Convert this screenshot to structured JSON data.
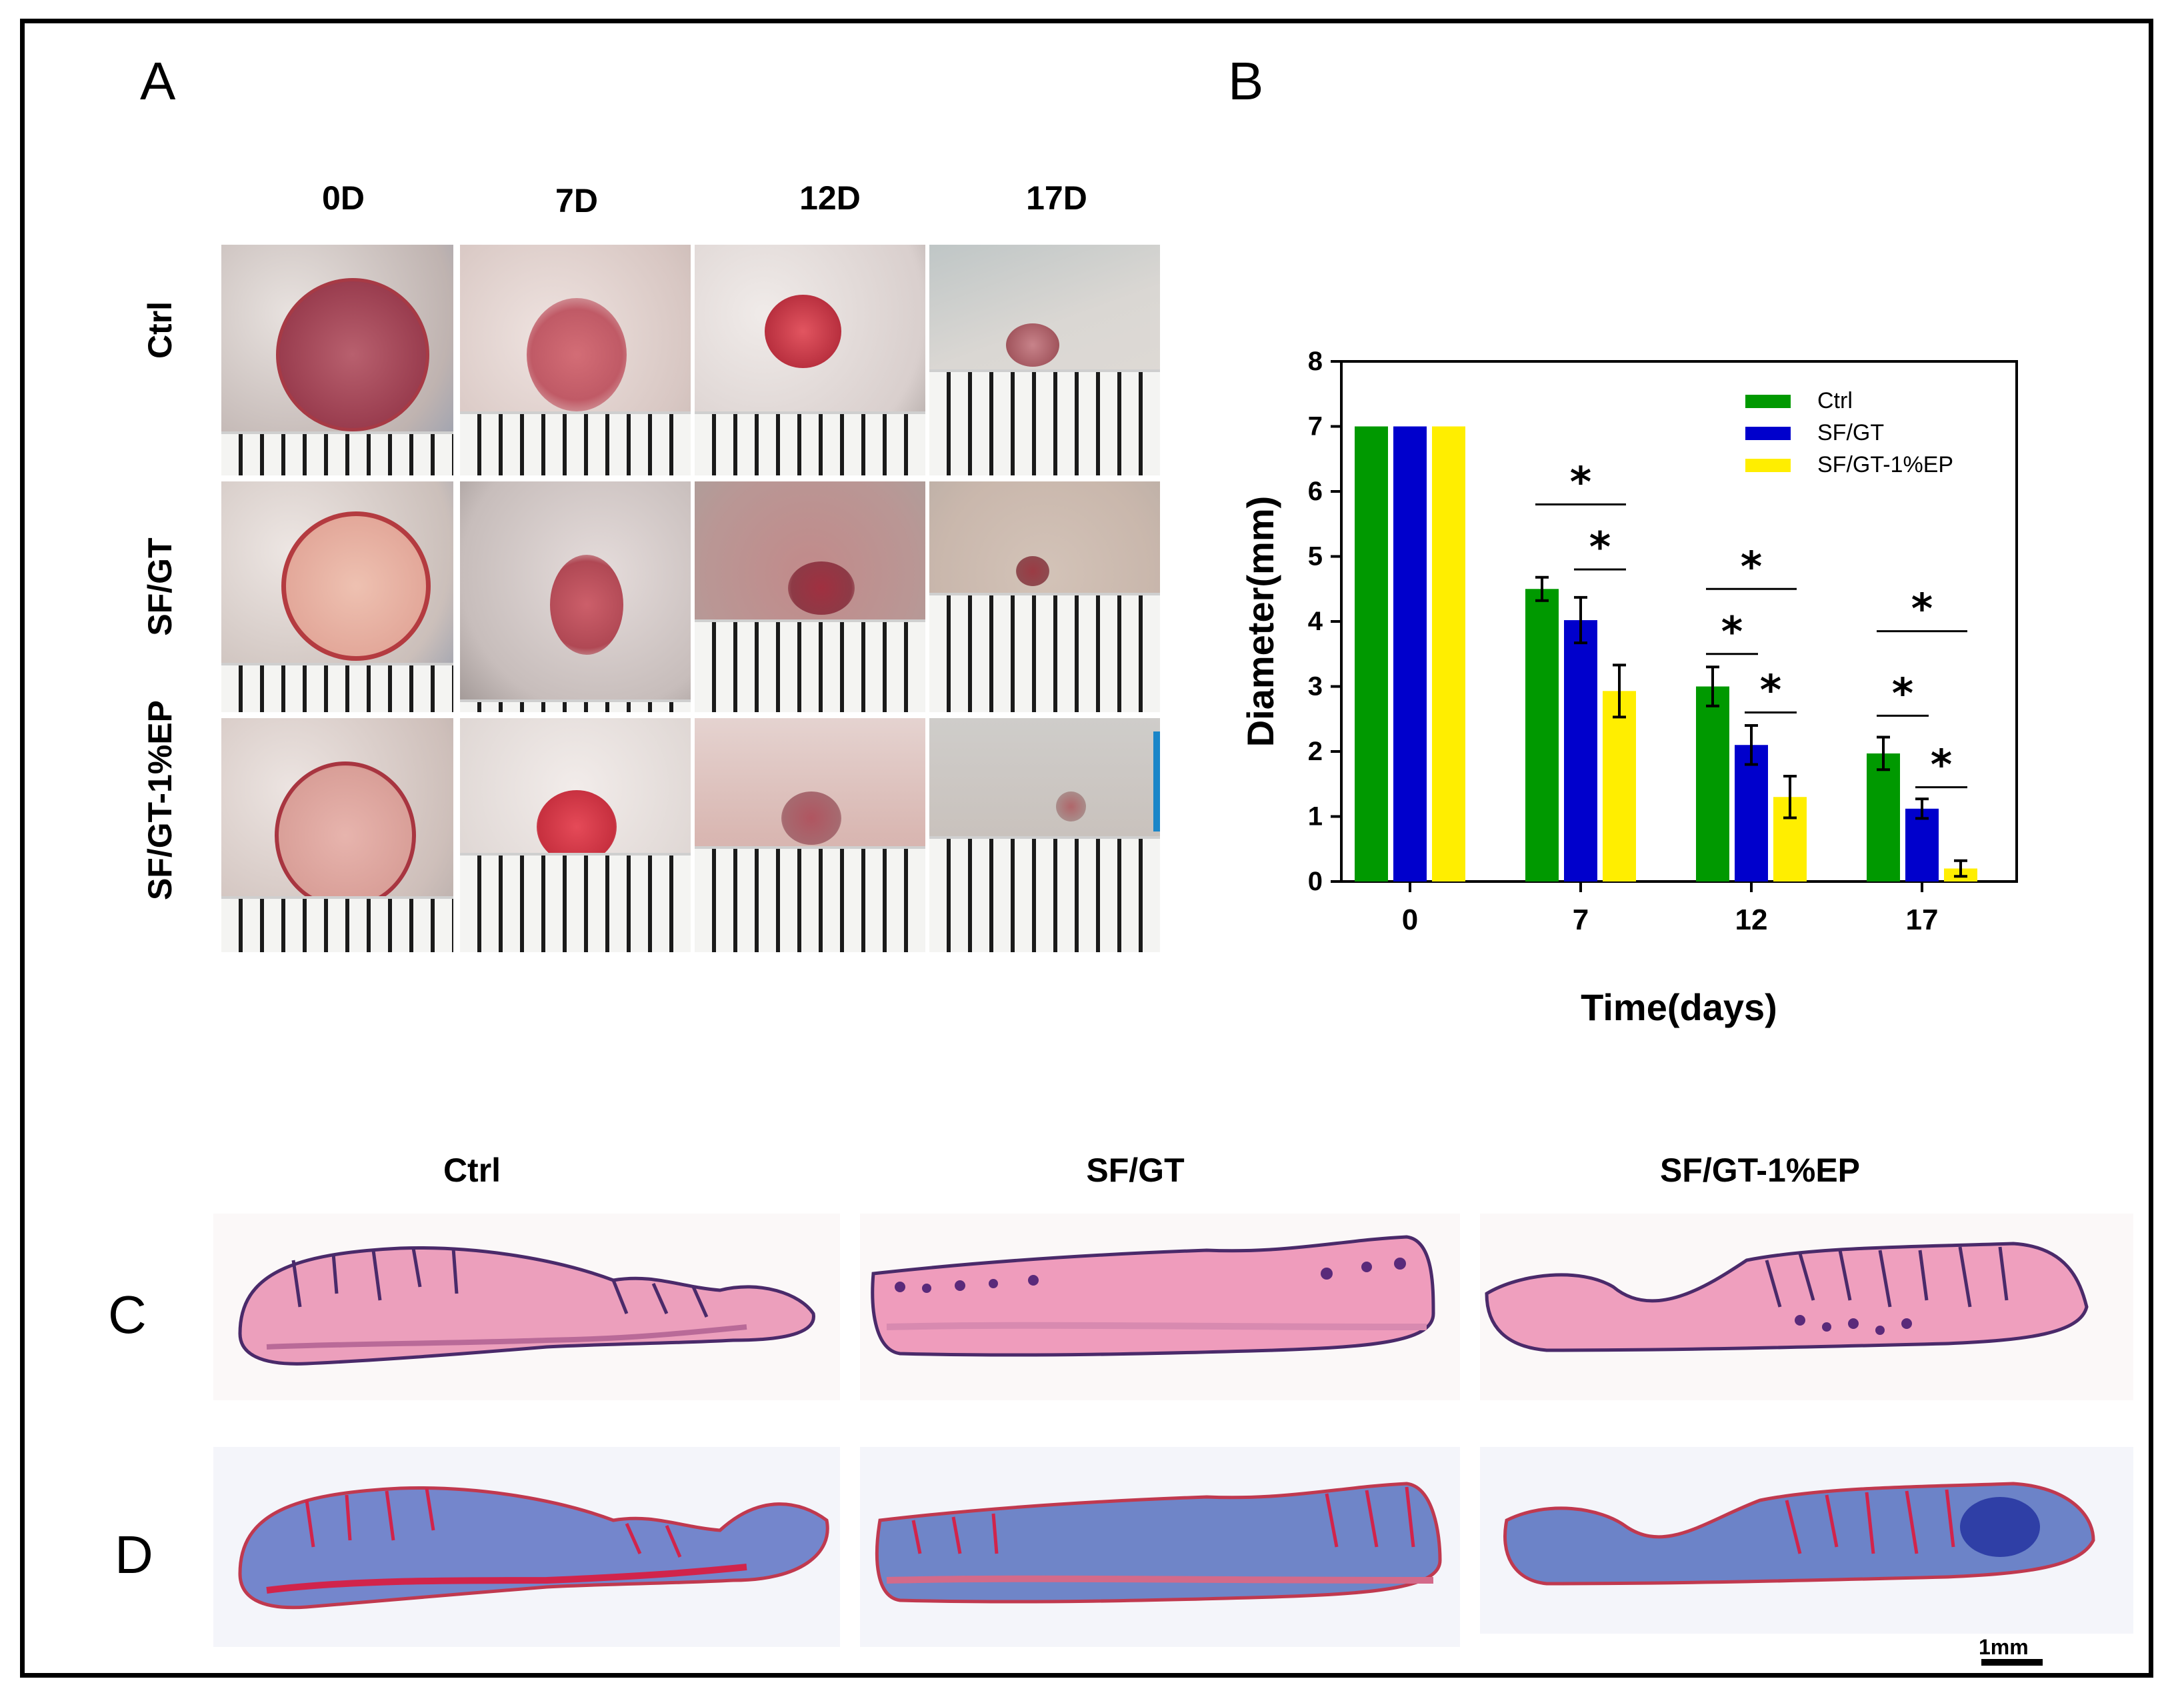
{
  "panels": {
    "a": "A",
    "b": "B",
    "c": "C",
    "d": "D"
  },
  "panel_a": {
    "columns": [
      "0D",
      "7D",
      "12D",
      "17D"
    ],
    "rows": [
      "Ctrl",
      "SF/GT",
      "SF/GT-1%EP"
    ]
  },
  "chart_data": {
    "type": "bar",
    "categories": [
      "0",
      "7",
      "12",
      "17"
    ],
    "series": [
      {
        "name": "Ctrl",
        "color": "#009900",
        "values": [
          7.0,
          4.5,
          3.0,
          1.97
        ],
        "errors": [
          0,
          0.18,
          0.3,
          0.25
        ]
      },
      {
        "name": "SF/GT",
        "color": "#0000cc",
        "values": [
          7.0,
          4.02,
          2.1,
          1.12
        ],
        "errors": [
          0,
          0.35,
          0.3,
          0.15
        ]
      },
      {
        "name": "SF/GT-1%EP",
        "color": "#ffee00",
        "values": [
          7.0,
          2.93,
          1.3,
          0.2
        ],
        "errors": [
          0,
          0.4,
          0.32,
          0.12
        ]
      }
    ],
    "xlabel": "Time(days)",
    "ylabel": "Diameter(mm)",
    "ylim": [
      0,
      8
    ],
    "yticks": [
      "0",
      "1",
      "2",
      "3",
      "4",
      "5",
      "6",
      "7",
      "8"
    ],
    "legend": "top-right",
    "significance": [
      {
        "group": "7",
        "from": "Ctrl",
        "to": "SF/GT-1%EP",
        "mark": "*",
        "level": 5.8
      },
      {
        "group": "7",
        "from": "SF/GT",
        "to": "SF/GT-1%EP",
        "mark": "*",
        "level": 4.8
      },
      {
        "group": "12",
        "from": "Ctrl",
        "to": "SF/GT-1%EP",
        "mark": "*",
        "level": 4.5
      },
      {
        "group": "12",
        "from": "Ctrl",
        "to": "SF/GT",
        "mark": "*",
        "level": 3.5
      },
      {
        "group": "12",
        "from": "SF/GT",
        "to": "SF/GT-1%EP",
        "mark": "*",
        "level": 2.6
      },
      {
        "group": "17",
        "from": "Ctrl",
        "to": "SF/GT-1%EP",
        "mark": "*",
        "level": 3.85
      },
      {
        "group": "17",
        "from": "Ctrl",
        "to": "SF/GT",
        "mark": "*",
        "level": 2.55
      },
      {
        "group": "17",
        "from": "SF/GT",
        "to": "SF/GT-1%EP",
        "mark": "*",
        "level": 1.45
      }
    ]
  },
  "panel_cd": {
    "columns": [
      "Ctrl",
      "SF/GT",
      "SF/GT-1%EP"
    ],
    "scale_label": "1mm"
  }
}
